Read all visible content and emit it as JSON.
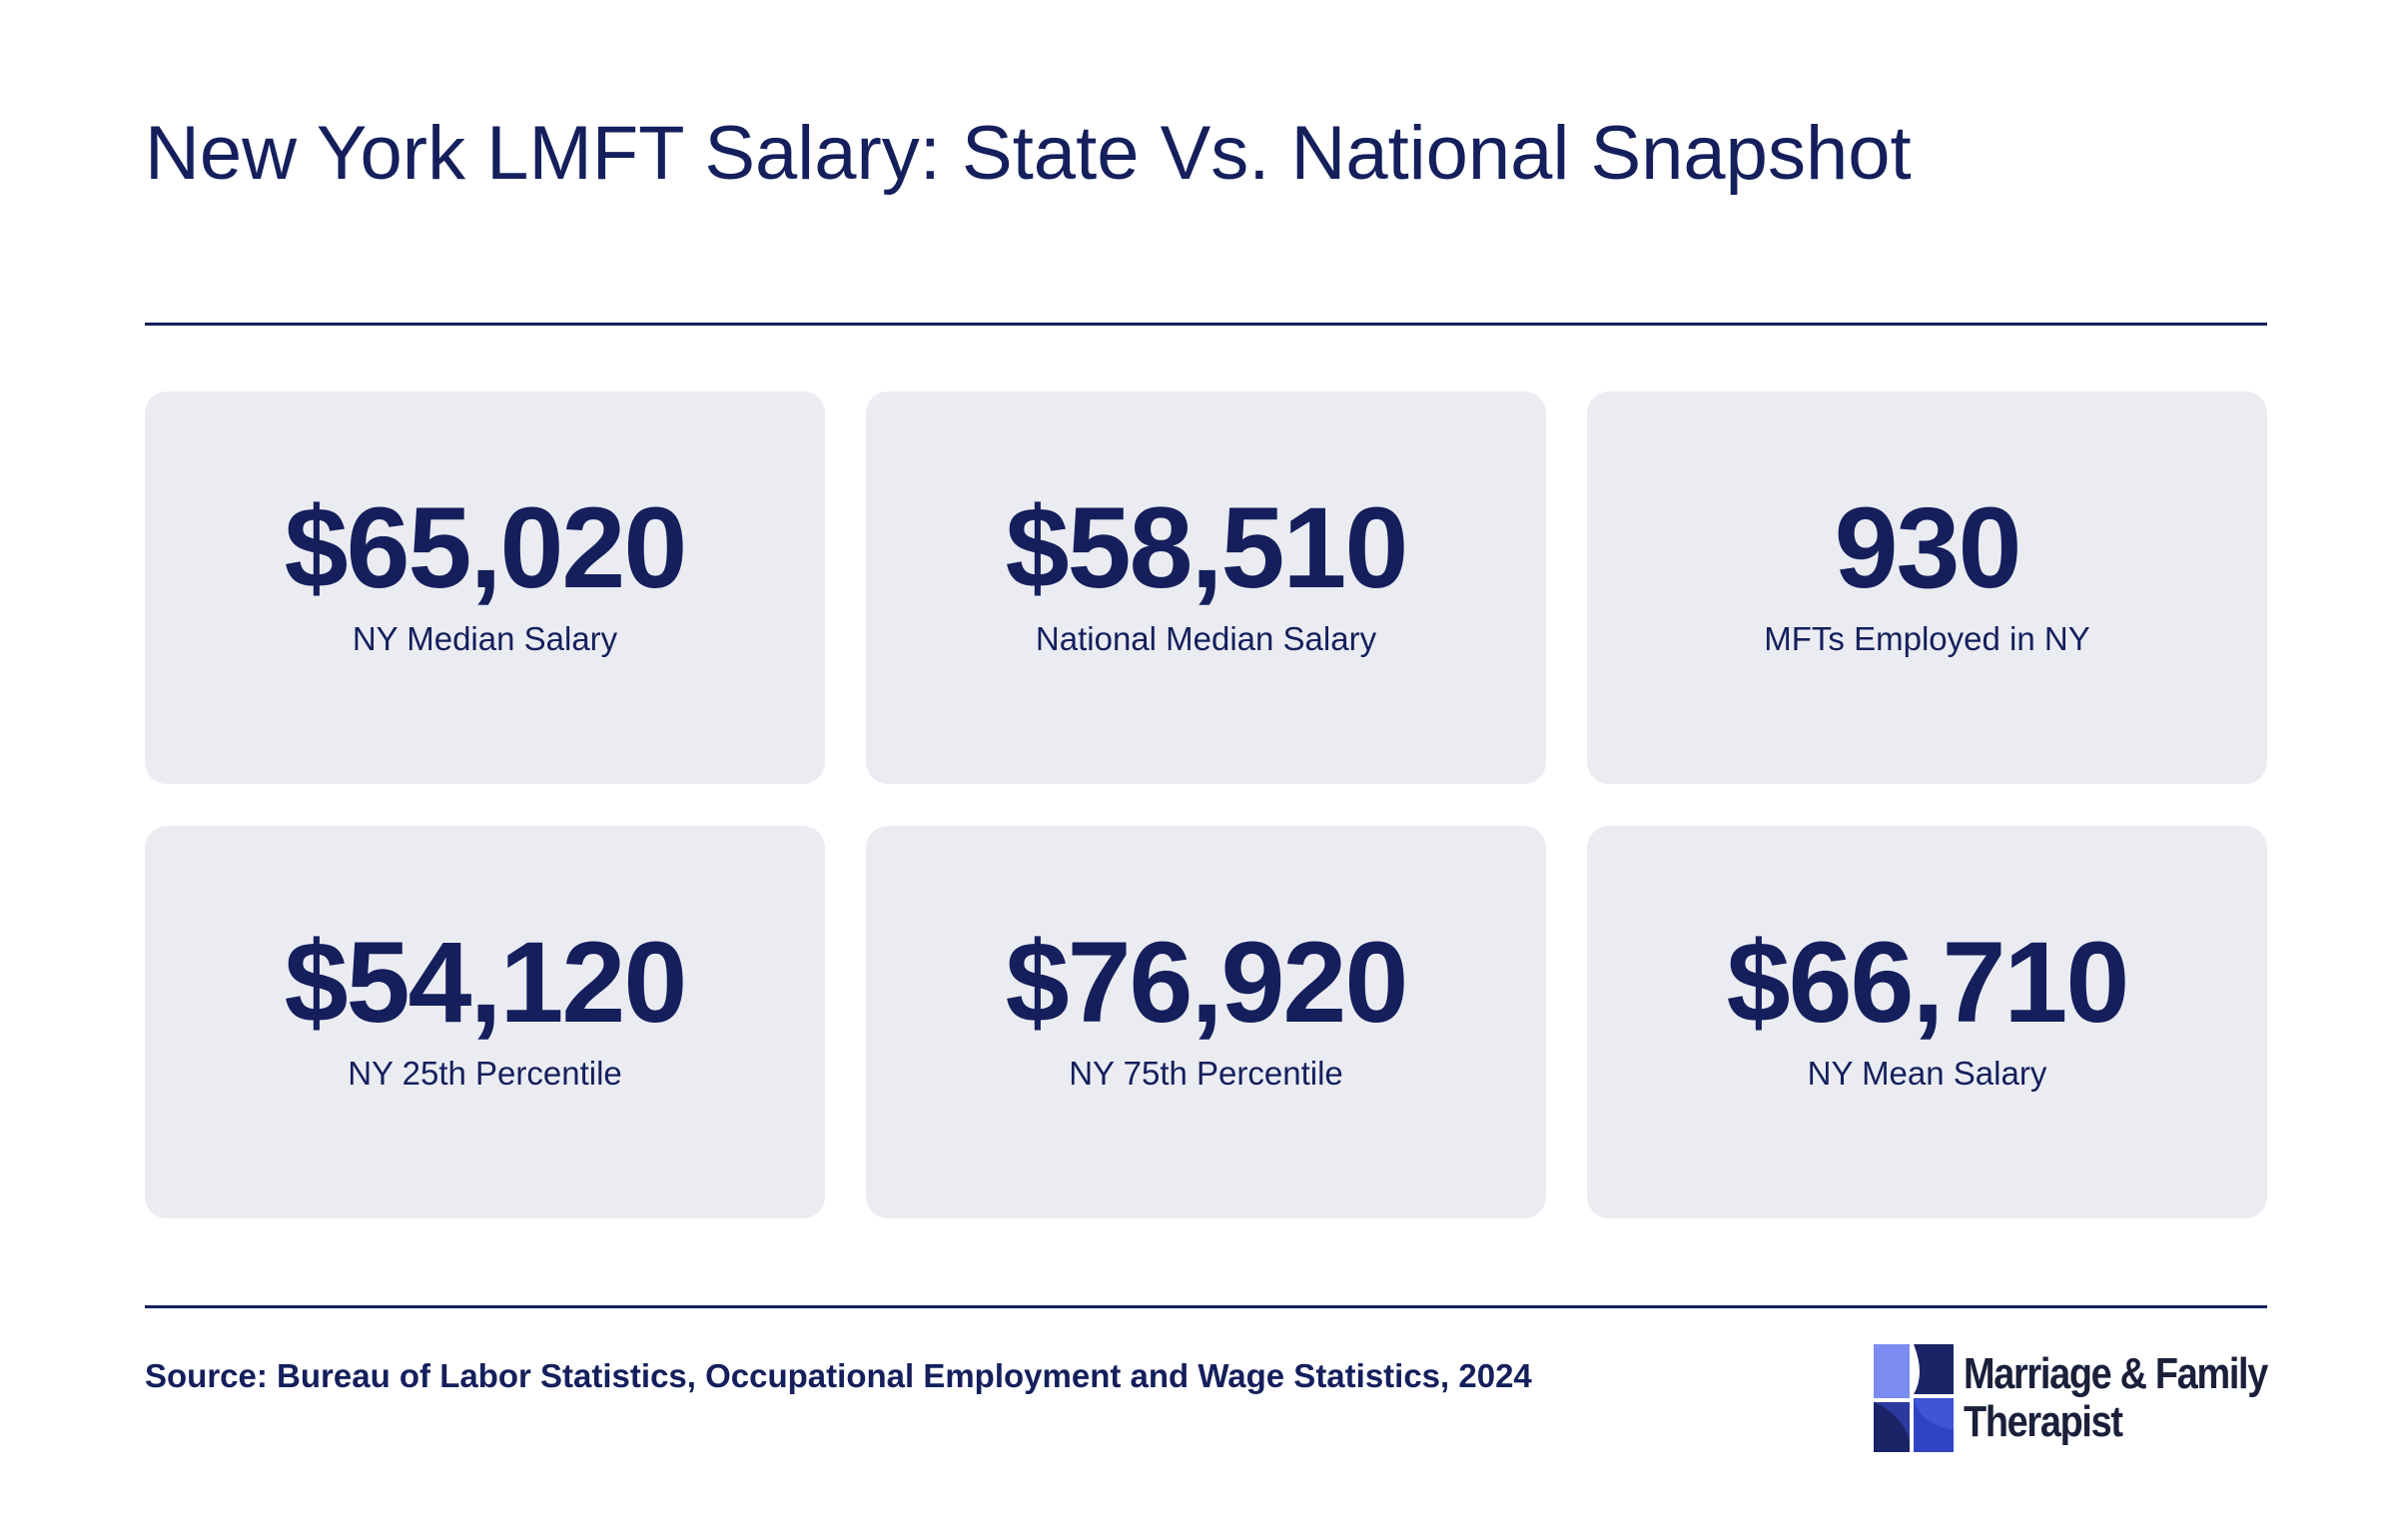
{
  "title": "New York LMFT Salary: State Vs. National Snapshot",
  "cards": [
    {
      "value": "$65,020",
      "label": "NY Median Salary"
    },
    {
      "value": "$58,510",
      "label": "National Median Salary"
    },
    {
      "value": "930",
      "label": "MFTs Employed in NY"
    },
    {
      "value": "$54,120",
      "label": "NY 25th Percentile"
    },
    {
      "value": "$76,920",
      "label": "NY 75th Percentile"
    },
    {
      "value": "$66,710",
      "label": "NY Mean Salary"
    }
  ],
  "source": "Source: Bureau of Labor Statistics, Occupational Employment and Wage Statistics, 2024",
  "logo": {
    "line1": "Marriage & Family",
    "line2": "Therapist"
  },
  "colors": {
    "text": "#141f5c",
    "card_background": "#ebecf2",
    "logo_light_blue": "#7b8cf0",
    "logo_mid_blue": "#2f44c4",
    "logo_dark_navy": "#1a2466"
  }
}
